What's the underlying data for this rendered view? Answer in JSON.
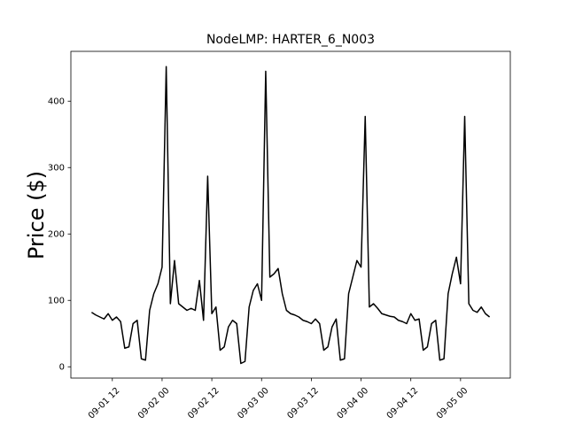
{
  "chart_data": {
    "type": "line",
    "title": "NodeLMP: HARTER_6_N003",
    "y_label": "Price ($)",
    "x": [
      "09-01 07",
      "09-01 08",
      "09-01 09",
      "09-01 10",
      "09-01 11",
      "09-01 12",
      "09-01 13",
      "09-01 14",
      "09-01 15",
      "09-01 16",
      "09-01 17",
      "09-01 18",
      "09-01 19",
      "09-01 20",
      "09-01 21",
      "09-01 22",
      "09-01 23",
      "09-02 00",
      "09-02 01",
      "09-02 02",
      "09-02 03",
      "09-02 04",
      "09-02 05",
      "09-02 06",
      "09-02 07",
      "09-02 08",
      "09-02 09",
      "09-02 10",
      "09-02 11",
      "09-02 12",
      "09-02 13",
      "09-02 14",
      "09-02 15",
      "09-02 16",
      "09-02 17",
      "09-02 18",
      "09-02 19",
      "09-02 20",
      "09-02 21",
      "09-02 22",
      "09-02 23",
      "09-03 00",
      "09-03 01",
      "09-03 02",
      "09-03 03",
      "09-03 04",
      "09-03 05",
      "09-03 06",
      "09-03 07",
      "09-03 08",
      "09-03 09",
      "09-03 10",
      "09-03 11",
      "09-03 12",
      "09-03 13",
      "09-03 14",
      "09-03 15",
      "09-03 16",
      "09-03 17",
      "09-03 18",
      "09-03 19",
      "09-03 20",
      "09-03 21",
      "09-03 22",
      "09-03 23",
      "09-04 00",
      "09-04 01",
      "09-04 02",
      "09-04 03",
      "09-04 04",
      "09-04 05",
      "09-04 06",
      "09-04 07",
      "09-04 08",
      "09-04 09",
      "09-04 10",
      "09-04 11",
      "09-04 12",
      "09-04 13",
      "09-04 14",
      "09-04 15",
      "09-04 16",
      "09-04 17",
      "09-04 18",
      "09-04 19",
      "09-04 20",
      "09-04 21",
      "09-04 22",
      "09-04 23",
      "09-05 00",
      "09-05 01",
      "09-05 02",
      "09-05 03",
      "09-05 04",
      "09-05 05",
      "09-05 06",
      "09-05 07"
    ],
    "series": [
      {
        "name": "HARTER_6_N003",
        "color": "#000000",
        "values": [
          82,
          78,
          75,
          72,
          80,
          70,
          75,
          68,
          28,
          30,
          65,
          70,
          12,
          10,
          85,
          110,
          125,
          150,
          452,
          95,
          160,
          95,
          90,
          85,
          88,
          85,
          130,
          70,
          287,
          80,
          90,
          25,
          30,
          60,
          70,
          65,
          5,
          8,
          90,
          115,
          125,
          100,
          445,
          135,
          140,
          148,
          110,
          85,
          80,
          78,
          75,
          70,
          68,
          65,
          72,
          65,
          25,
          30,
          60,
          72,
          10,
          12,
          110,
          135,
          160,
          150,
          377,
          90,
          95,
          88,
          80,
          78,
          76,
          75,
          70,
          68,
          65,
          80,
          70,
          72,
          25,
          30,
          65,
          70,
          10,
          12,
          110,
          140,
          165,
          125,
          377,
          95,
          85,
          82,
          90,
          80,
          75
        ]
      }
    ],
    "xlim": [
      "09-01 02",
      "09-05 12"
    ],
    "xticks": [
      "09-01 12",
      "09-02 00",
      "09-02 12",
      "09-03 00",
      "09-03 12",
      "09-04 00",
      "09-04 12",
      "09-05 00"
    ],
    "ylim": [
      -17,
      475
    ],
    "yticks": [
      0,
      100,
      200,
      300,
      400
    ]
  }
}
